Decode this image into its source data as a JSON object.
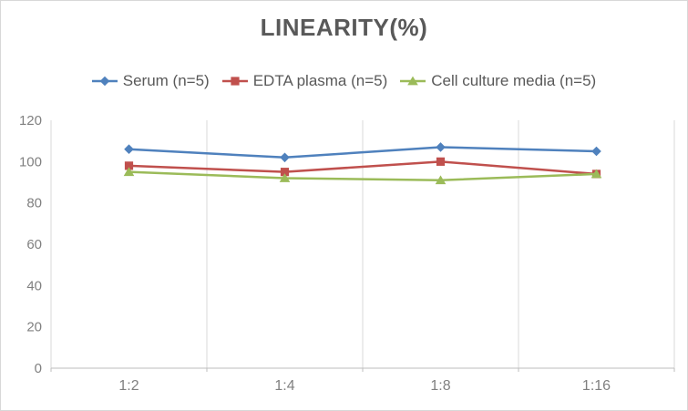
{
  "title": "LINEARITY(%)",
  "chart_data": {
    "type": "line",
    "title": "LINEARITY(%)",
    "xlabel": "",
    "ylabel": "",
    "categories": [
      "1:2",
      "1:4",
      "1:8",
      "1:16"
    ],
    "series": [
      {
        "name": "Serum (n=5)",
        "marker": "diamond",
        "color": "#4F81BD",
        "values": [
          106,
          102,
          107,
          105
        ]
      },
      {
        "name": "EDTA plasma (n=5)",
        "marker": "square",
        "color": "#C0504D",
        "values": [
          98,
          95,
          100,
          94
        ]
      },
      {
        "name": "Cell culture media (n=5)",
        "marker": "triangle",
        "color": "#9BBB59",
        "values": [
          95,
          92,
          91,
          94
        ]
      }
    ],
    "ylim": [
      0,
      120
    ],
    "yticks": [
      0,
      20,
      40,
      60,
      80,
      100,
      120
    ],
    "grid": "vertical-category-boundaries-only",
    "legend_position": "top"
  },
  "colors": {
    "title_text": "#595959",
    "legend_text": "#595959",
    "axis_tick_text": "#808080",
    "x_axis_line": "#bdbdbd",
    "y_axis_line": "#d9d9d9",
    "gridline": "#d9d9d9",
    "frame_border": "#d8d8d8",
    "background": "#ffffff"
  }
}
